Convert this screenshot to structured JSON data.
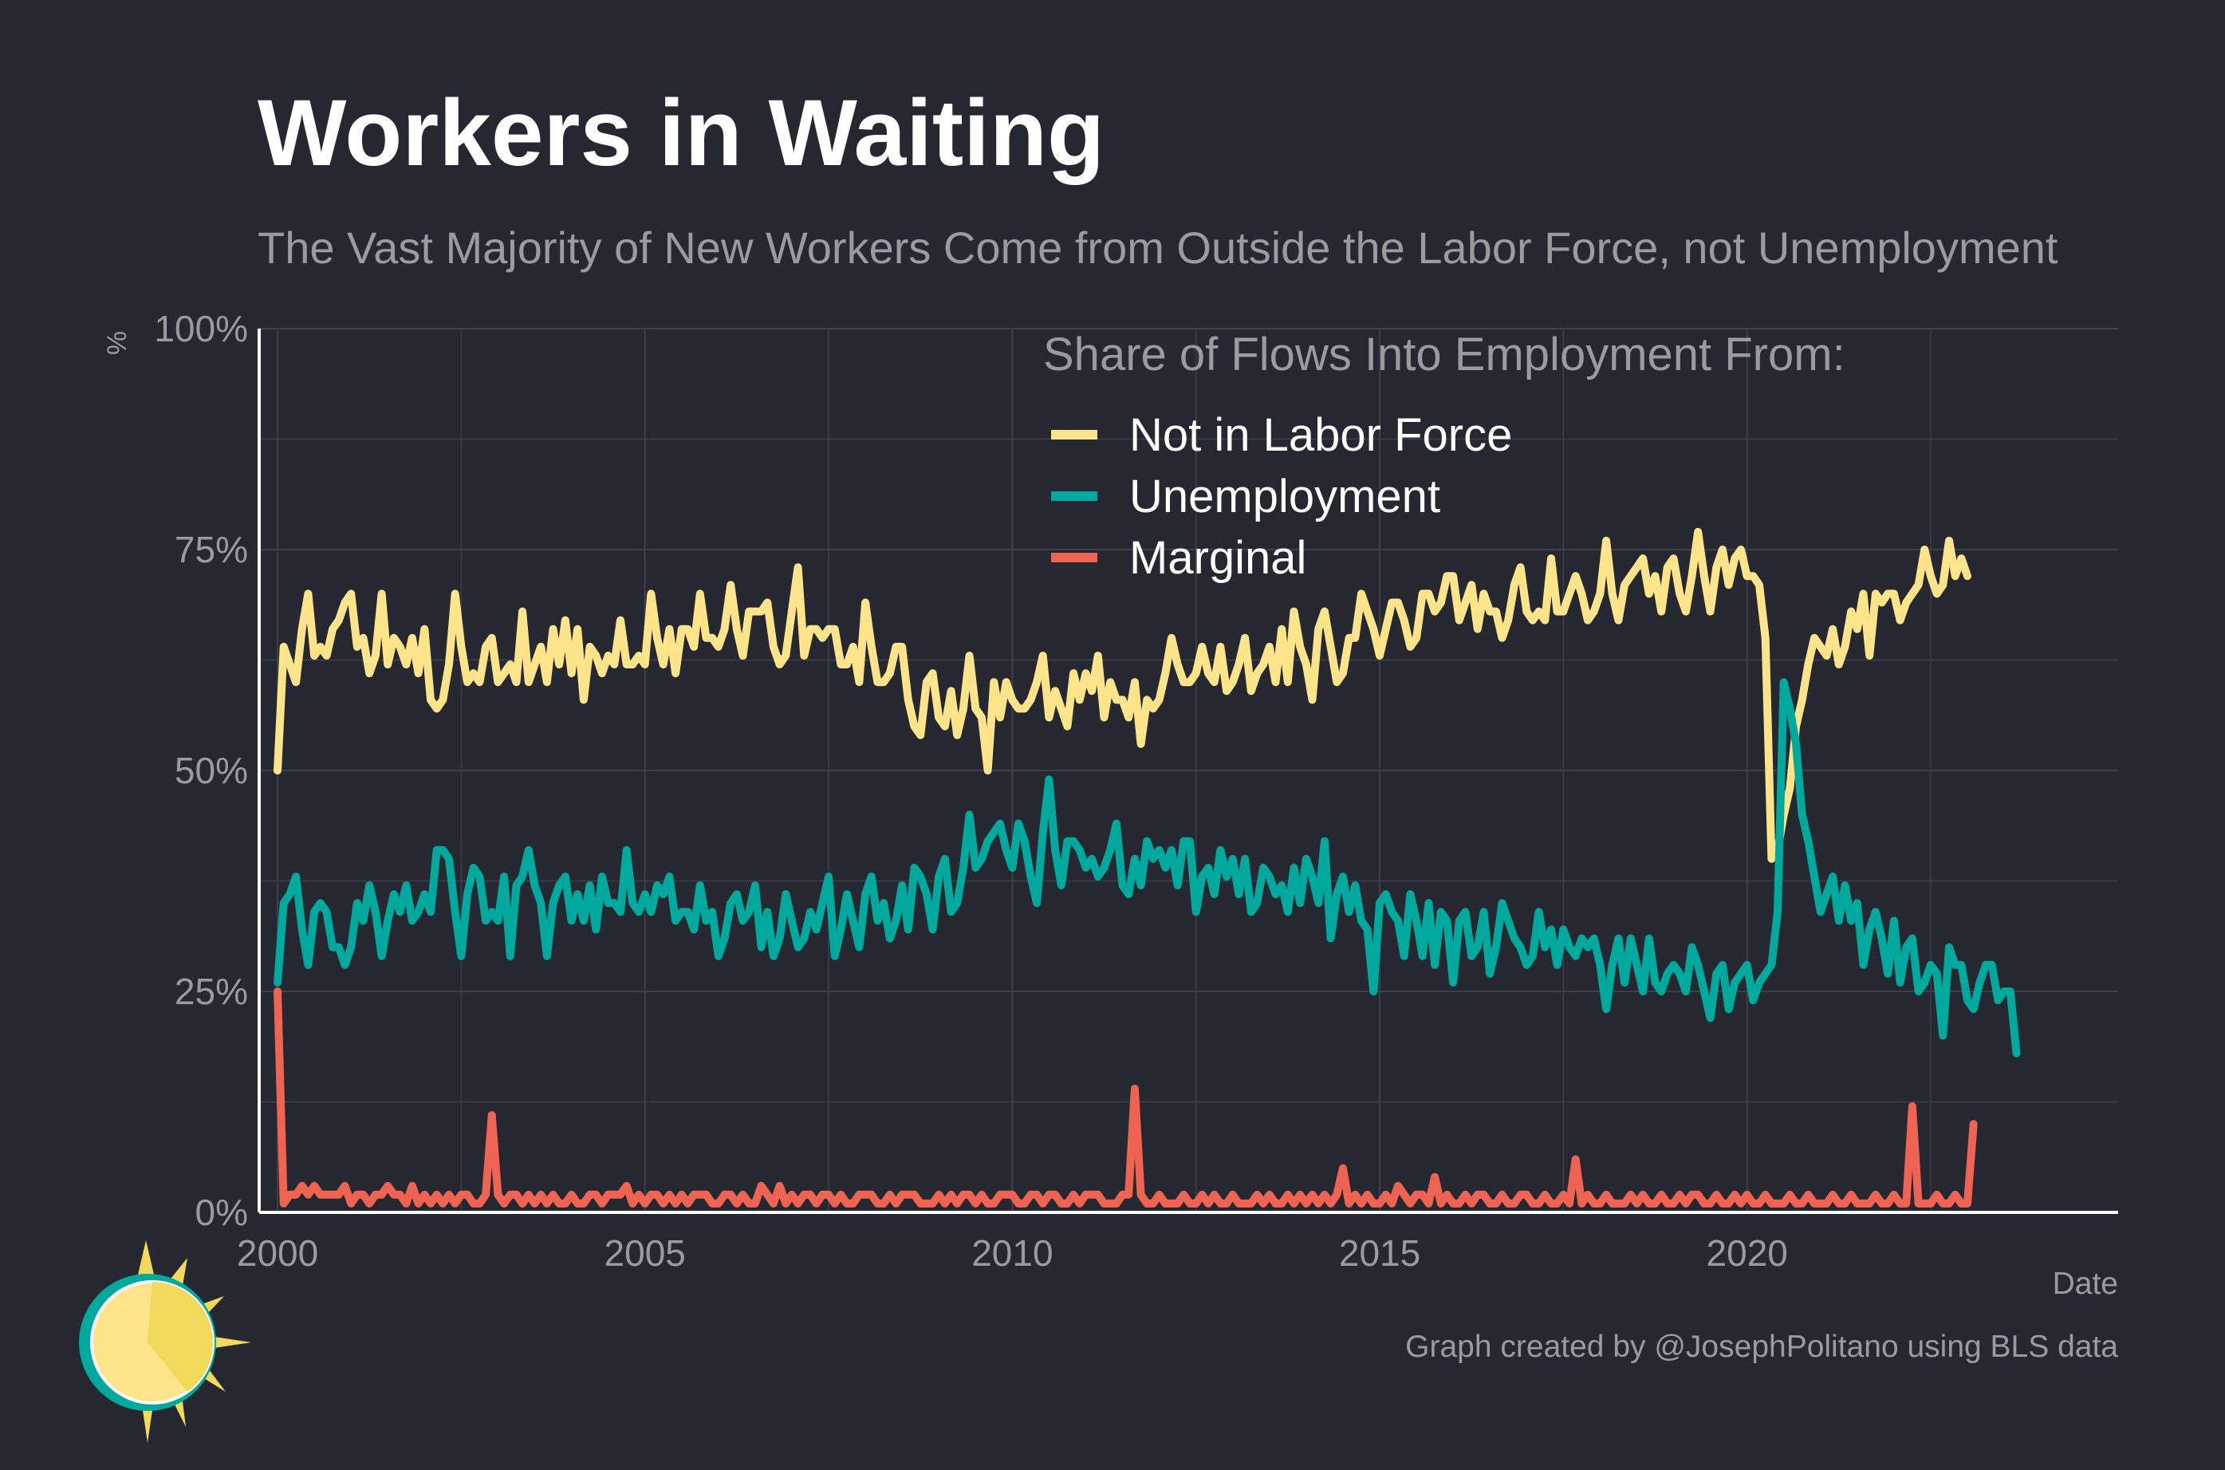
{
  "title": "Workers in Waiting",
  "subtitle": "The Vast Majority of New Workers Come from Outside the Labor Force, not Unemployment",
  "caption": "Graph created by @JosephPolitano using BLS data",
  "colors": {
    "background": "#252830",
    "grid": "#3d4049",
    "axis": "#ffffff",
    "text_muted": "#9a9ba0",
    "nilf": "#fde38a",
    "unemployment": "#00a99d",
    "marginal": "#ee6352"
  },
  "chart_data": {
    "type": "line",
    "ylabel": "%",
    "xlabel": "Date",
    "x_range": [
      1999.75,
      2025.05
    ],
    "ylim": [
      0,
      100
    ],
    "x_ticks": [
      2000,
      2005,
      2010,
      2015,
      2020
    ],
    "x_tick_labels": [
      "2000",
      "2005",
      "2010",
      "2015",
      "2020"
    ],
    "y_ticks": [
      0,
      25,
      50,
      75,
      100
    ],
    "y_tick_labels": [
      "0%",
      "25%",
      "50%",
      "75%",
      "100%"
    ],
    "grid": true,
    "legend": {
      "title": "Share of Flows Into Employment From:",
      "position": "top-center",
      "items": [
        "Not in Labor Force",
        "Unemployment",
        "Marginal"
      ]
    },
    "x_start": 2000.0,
    "x_step": 0.08333,
    "series": [
      {
        "name": "Not in Labor Force",
        "color": "#fde38a",
        "values": [
          50,
          64,
          62,
          60,
          66,
          70,
          63,
          64,
          63,
          66,
          67,
          69,
          70,
          64,
          65,
          61,
          63,
          70,
          62,
          65,
          64,
          62,
          65,
          61,
          66,
          58,
          57,
          58,
          62,
          70,
          64,
          60,
          61,
          60,
          64,
          65,
          60,
          61,
          62,
          60,
          68,
          60,
          62,
          64,
          60,
          66,
          62,
          67,
          61,
          66,
          58,
          64,
          63,
          61,
          63,
          62,
          67,
          62,
          62,
          63,
          62,
          70,
          65,
          62,
          66,
          61,
          66,
          66,
          64,
          70,
          65,
          65,
          64,
          66,
          71,
          66,
          63,
          68,
          68,
          68,
          69,
          64,
          62,
          63,
          68,
          73,
          63,
          66,
          66,
          65,
          66,
          66,
          62,
          62,
          64,
          60,
          69,
          64,
          60,
          60,
          61,
          64,
          64,
          58,
          55,
          54,
          60,
          61,
          56,
          55,
          59,
          54,
          57,
          63,
          57,
          56,
          50,
          60,
          56,
          60,
          58,
          57,
          57,
          58,
          60,
          63,
          56,
          59,
          57,
          55,
          61,
          58,
          61,
          59,
          63,
          56,
          60,
          58,
          58,
          56,
          60,
          53,
          58,
          57,
          58,
          61,
          65,
          62,
          60,
          60,
          61,
          64,
          61,
          60,
          64,
          59,
          60,
          62,
          65,
          59,
          61,
          62,
          64,
          60,
          66,
          60,
          68,
          64,
          62,
          58,
          66,
          68,
          64,
          60,
          61,
          65,
          65,
          70,
          68,
          66,
          63,
          66,
          69,
          69,
          67,
          64,
          65,
          70,
          70,
          68,
          69,
          72,
          72,
          67,
          69,
          71,
          66,
          70,
          68,
          68,
          65,
          67,
          71,
          73,
          68,
          67,
          68,
          67,
          74,
          68,
          68,
          70,
          72,
          70,
          67,
          68,
          70,
          76,
          70,
          67,
          71,
          72,
          73,
          74,
          70,
          72,
          68,
          73,
          74,
          70,
          68,
          72,
          77,
          72,
          68,
          73,
          75,
          71,
          74,
          75,
          72,
          72,
          71,
          65,
          40,
          41,
          45,
          48,
          55,
          58,
          62,
          65,
          64,
          63,
          66,
          62,
          64,
          68,
          66,
          70,
          63,
          70,
          69,
          70,
          70,
          67,
          69,
          70,
          71,
          75,
          72,
          70,
          71,
          76,
          72,
          74,
          72
        ]
      },
      {
        "name": "Unemployment",
        "color": "#00a99d",
        "values": [
          26,
          35,
          36,
          38,
          32,
          28,
          34,
          35,
          34,
          30,
          30,
          28,
          30,
          35,
          33,
          37,
          34,
          29,
          33,
          36,
          34,
          37,
          33,
          34,
          36,
          34,
          41,
          41,
          40,
          34,
          29,
          36,
          39,
          38,
          33,
          34,
          33,
          38,
          29,
          37,
          38,
          41,
          37,
          35,
          29,
          35,
          37,
          38,
          33,
          36,
          33,
          37,
          32,
          38,
          35,
          35,
          34,
          41,
          35,
          34,
          36,
          34,
          37,
          36,
          38,
          33,
          34,
          34,
          32,
          37,
          33,
          34,
          29,
          31,
          35,
          36,
          33,
          34,
          37,
          30,
          34,
          29,
          31,
          36,
          33,
          30,
          31,
          34,
          32,
          35,
          38,
          29,
          32,
          36,
          33,
          30,
          36,
          38,
          33,
          35,
          31,
          33,
          37,
          32,
          39,
          38,
          36,
          32,
          38,
          40,
          34,
          35,
          39,
          45,
          39,
          40,
          42,
          43,
          44,
          41,
          39,
          44,
          42,
          38,
          35,
          43,
          49,
          41,
          37,
          42,
          42,
          41,
          39,
          40,
          38,
          39,
          41,
          44,
          37,
          36,
          40,
          37,
          42,
          40,
          41,
          39,
          41,
          37,
          42,
          42,
          34,
          38,
          39,
          36,
          41,
          38,
          40,
          36,
          40,
          34,
          35,
          39,
          38,
          36,
          37,
          34,
          39,
          35,
          40,
          38,
          35,
          42,
          31,
          36,
          38,
          34,
          37,
          33,
          32,
          25,
          35,
          36,
          34,
          33,
          29,
          36,
          33,
          29,
          35,
          28,
          34,
          33,
          26,
          33,
          34,
          29,
          30,
          34,
          27,
          30,
          35,
          33,
          31,
          30,
          28,
          29,
          34,
          30,
          32,
          28,
          32,
          30,
          29,
          31,
          30,
          31,
          28,
          23,
          28,
          31,
          26,
          31,
          28,
          25,
          31,
          26,
          25,
          27,
          28,
          27,
          25,
          30,
          28,
          25,
          22,
          27,
          28,
          23,
          26,
          27,
          28,
          24,
          26,
          27,
          28,
          34,
          60,
          57,
          53,
          45,
          42,
          38,
          34,
          36,
          38,
          33,
          37,
          33,
          35,
          28,
          32,
          34,
          31,
          27,
          33,
          26,
          30,
          31,
          25,
          26,
          28,
          27,
          20,
          30,
          28,
          28,
          24,
          23,
          26,
          28,
          28,
          24,
          25,
          25,
          18
        ]
      },
      {
        "name": "Marginal",
        "color": "#ee6352",
        "values": [
          25,
          1,
          2,
          2,
          3,
          2,
          3,
          2,
          2,
          2,
          2,
          3,
          1,
          2,
          2,
          1,
          2,
          2,
          3,
          2,
          2,
          1,
          3,
          1,
          2,
          1,
          2,
          1,
          2,
          1,
          2,
          2,
          1,
          1,
          2,
          11,
          2,
          1,
          2,
          2,
          1,
          2,
          1,
          2,
          1,
          2,
          1,
          1,
          2,
          1,
          1,
          2,
          2,
          1,
          2,
          2,
          2,
          3,
          1,
          2,
          1,
          2,
          2,
          1,
          2,
          1,
          2,
          1,
          2,
          2,
          2,
          1,
          1,
          2,
          2,
          1,
          2,
          1,
          1,
          3,
          2,
          1,
          3,
          1,
          2,
          1,
          2,
          2,
          1,
          2,
          2,
          1,
          2,
          1,
          1,
          2,
          2,
          2,
          1,
          1,
          2,
          1,
          2,
          2,
          2,
          1,
          1,
          1,
          2,
          1,
          2,
          1,
          2,
          2,
          1,
          2,
          1,
          1,
          2,
          2,
          2,
          1,
          1,
          2,
          2,
          1,
          2,
          2,
          1,
          1,
          2,
          1,
          2,
          2,
          2,
          1,
          1,
          1,
          2,
          2,
          14,
          2,
          1,
          1,
          2,
          1,
          1,
          1,
          2,
          1,
          1,
          2,
          1,
          2,
          1,
          1,
          2,
          1,
          1,
          1,
          2,
          1,
          2,
          1,
          1,
          2,
          1,
          2,
          1,
          2,
          1,
          2,
          1,
          2,
          5,
          1,
          2,
          1,
          2,
          1,
          1,
          2,
          1,
          3,
          2,
          1,
          2,
          2,
          1,
          4,
          1,
          2,
          1,
          1,
          2,
          1,
          2,
          2,
          1,
          1,
          2,
          1,
          1,
          2,
          2,
          1,
          1,
          2,
          1,
          1,
          2,
          1,
          6,
          1,
          2,
          1,
          1,
          2,
          1,
          1,
          1,
          2,
          1,
          2,
          1,
          1,
          2,
          1,
          1,
          2,
          1,
          2,
          2,
          1,
          1,
          2,
          1,
          1,
          2,
          1,
          2,
          1,
          1,
          2,
          1,
          1,
          1,
          2,
          1,
          1,
          2,
          1,
          1,
          1,
          2,
          1,
          1,
          2,
          1,
          1,
          1,
          2,
          1,
          1,
          2,
          1,
          1,
          12,
          1,
          1,
          1,
          2,
          1,
          1,
          2,
          1,
          1,
          10
        ]
      }
    ]
  }
}
